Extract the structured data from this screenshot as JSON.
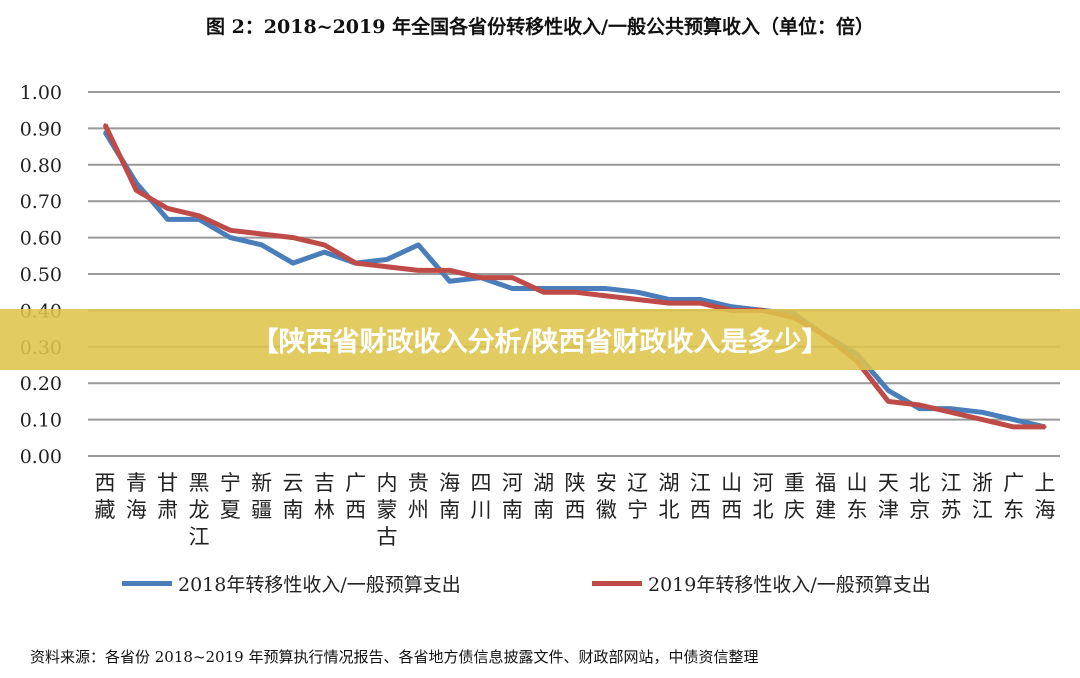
{
  "chart_data": {
    "type": "line",
    "title": "图 2：2018~2019 年全国各省份转移性收入/一般公共预算收入（单位：倍）",
    "categories": [
      "西藏",
      "青海",
      "甘肃",
      "黑龙江",
      "宁夏",
      "新疆",
      "云南",
      "吉林",
      "广西",
      "内蒙古",
      "贵州",
      "海南",
      "四川",
      "河南",
      "湖南",
      "陕西",
      "安徽",
      "辽宁",
      "湖北",
      "江西",
      "山西",
      "河北",
      "重庆",
      "福建",
      "山东",
      "天津",
      "北京",
      "江苏",
      "浙江",
      "广东",
      "上海"
    ],
    "series": [
      {
        "name": "2018年转移性收入/一般预算支出",
        "color": "#4a7ebb",
        "values": [
          0.89,
          0.75,
          0.65,
          0.65,
          0.6,
          0.58,
          0.53,
          0.56,
          0.53,
          0.54,
          0.58,
          0.48,
          0.49,
          0.46,
          0.46,
          0.46,
          0.46,
          0.45,
          0.43,
          0.43,
          0.41,
          0.4,
          0.39,
          0.33,
          0.28,
          0.18,
          0.13,
          0.13,
          0.12,
          0.1,
          0.08
        ]
      },
      {
        "name": "2019年转移性收入/一般预算支出",
        "color": "#be4b48",
        "values": [
          0.91,
          0.73,
          0.68,
          0.66,
          0.62,
          0.61,
          0.6,
          0.58,
          0.53,
          0.52,
          0.51,
          0.51,
          0.49,
          0.49,
          0.45,
          0.45,
          0.44,
          0.43,
          0.42,
          0.42,
          0.4,
          0.4,
          0.38,
          0.33,
          0.26,
          0.15,
          0.14,
          0.12,
          0.1,
          0.08,
          0.08
        ]
      }
    ],
    "yticks": [
      "0.00",
      "0.10",
      "0.20",
      "0.30",
      "0.40",
      "0.50",
      "0.60",
      "0.70",
      "0.80",
      "0.90",
      "1.00"
    ],
    "ylim": [
      0,
      1
    ],
    "grid": true,
    "legend": "bottom"
  },
  "banner": "【陕西省财政收入分析/陕西省财政收入是多少】",
  "source": "资料来源：各省份 2018~2019 年预算执行情况报告、各省地方债信息披露文件、财政部网站，中债资信整理"
}
